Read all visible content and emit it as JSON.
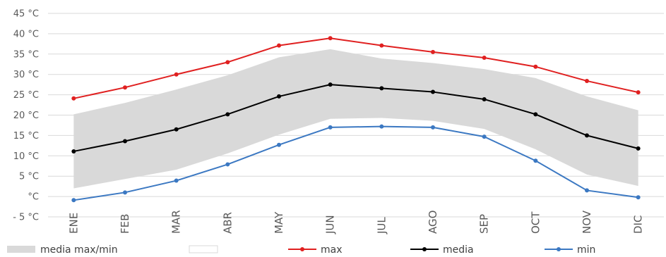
{
  "chart_data": {
    "type": "line",
    "categories": [
      "ENE",
      "FEB",
      "MAR",
      "ABR",
      "MAY",
      "JUN",
      "JUL",
      "AGO",
      "SEP",
      "OCT",
      "NOV",
      "DIC"
    ],
    "yaxis": {
      "min": -5,
      "max": 45,
      "step": 5,
      "tick_labels": [
        "- 5 °C",
        "°C",
        "5 °C",
        "10 °C",
        "15 °C",
        "20 °C",
        "25 °C",
        "30 °C",
        "35 °C",
        "40 °C",
        "45 °C"
      ]
    },
    "band": {
      "name": "media max/min",
      "upper": [
        20.2,
        23,
        26.3,
        29.8,
        34.2,
        36.2,
        33.9,
        32.8,
        31.3,
        29.1,
        24.6,
        21.2
      ],
      "lower": [
        2,
        4.3,
        6.6,
        10.6,
        15.2,
        19.1,
        19.3,
        18.6,
        16.6,
        11.6,
        5.4,
        2.6
      ],
      "color": "#d9d9d9"
    },
    "series": [
      {
        "name": "max",
        "color": "#e02020",
        "values": [
          24.1,
          26.8,
          30,
          33,
          37.1,
          38.9,
          37.1,
          35.5,
          34.1,
          31.9,
          28.4,
          25.6
        ]
      },
      {
        "name": "media",
        "color": "#000000",
        "values": [
          11.1,
          13.6,
          16.5,
          20.2,
          24.6,
          27.5,
          26.6,
          25.7,
          23.9,
          20.2,
          15,
          11.8
        ]
      },
      {
        "name": "min",
        "color": "#3b78c2",
        "values": [
          -0.9,
          1,
          3.9,
          7.9,
          12.7,
          17,
          17.2,
          17,
          14.7,
          8.8,
          1.5,
          -0.2
        ]
      }
    ],
    "legend": {
      "placement": "bottom",
      "blank_entry": ""
    },
    "grid": true
  }
}
